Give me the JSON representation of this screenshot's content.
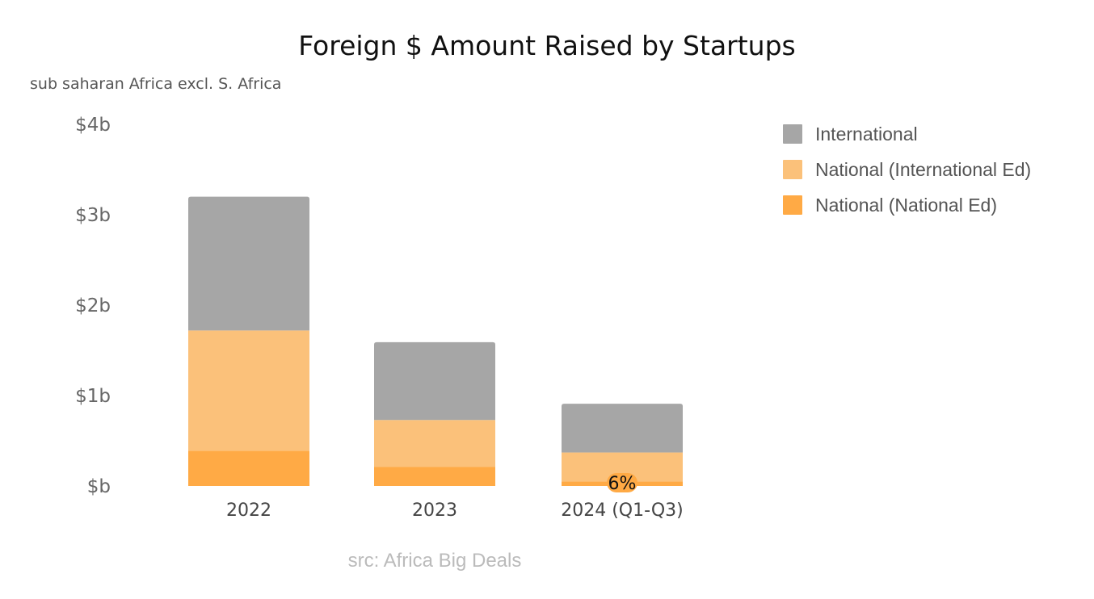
{
  "chart_data": {
    "type": "bar",
    "stacked": true,
    "title": "Foreign $ Amount Raised by Startups",
    "subtitle": "sub saharan Africa excl. S. Africa",
    "source": "src: Africa Big Deals",
    "categories": [
      "2022",
      "2023",
      "2024 (Q1-Q3)"
    ],
    "series": [
      {
        "name": "National (National Ed)",
        "color": "#FFAA45",
        "values": [
          0.39,
          0.21,
          0.05
        ]
      },
      {
        "name": "National (International Ed)",
        "color": "#FBC17A",
        "values": [
          1.33,
          0.52,
          0.32
        ]
      },
      {
        "name": "International",
        "color": "#A6A6A6",
        "values": [
          1.48,
          0.86,
          0.54
        ]
      }
    ],
    "ylim": [
      0,
      4
    ],
    "y_ticks": [
      {
        "value": 0,
        "label": "$b"
      },
      {
        "value": 1,
        "label": "$1b"
      },
      {
        "value": 2,
        "label": "$2b"
      },
      {
        "value": 3,
        "label": "$3b"
      },
      {
        "value": 4,
        "label": "$4b"
      }
    ],
    "legend_order": [
      "International",
      "National (International Ed)",
      "National (National Ed)"
    ],
    "legend_position": "top-right",
    "grid": false,
    "annotations": [
      {
        "category": "2024 (Q1-Q3)",
        "text": "6%",
        "color": "#FFAA45"
      }
    ]
  }
}
